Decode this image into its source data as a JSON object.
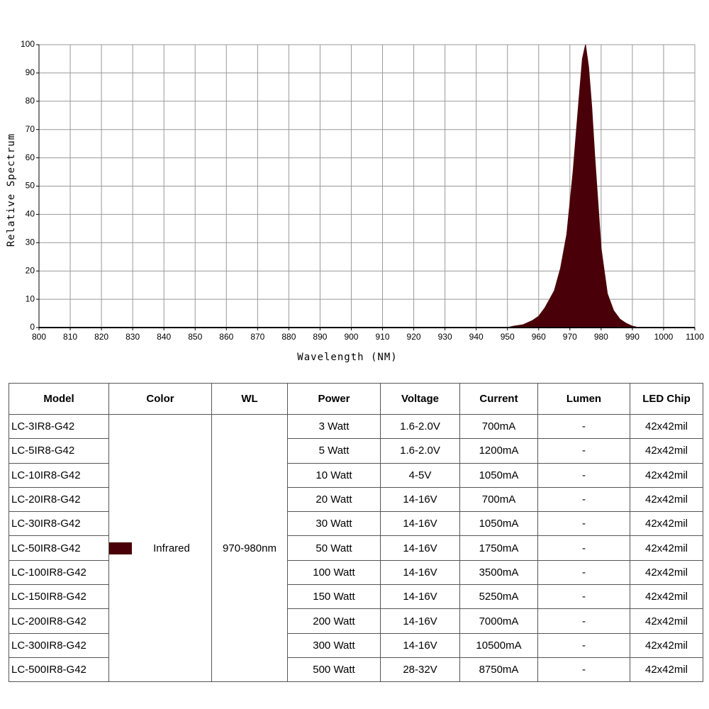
{
  "chart_data": {
    "type": "area",
    "xlabel": "Wavelength (NM)",
    "ylabel": "Relative Spectrum",
    "x": [
      800,
      950,
      952,
      955,
      958,
      960,
      962,
      965,
      967,
      969,
      971,
      973,
      974,
      975,
      976,
      977,
      978,
      980,
      982,
      984,
      986,
      988,
      990,
      992,
      1100
    ],
    "values": [
      0,
      0,
      0.5,
      1,
      2.5,
      4,
      7,
      13,
      21,
      33,
      55,
      82,
      95,
      100,
      92,
      78,
      60,
      28,
      12,
      6,
      3,
      1.5,
      0.5,
      0,
      0
    ],
    "color": "#4a0008",
    "xlim": [
      800,
      1100
    ],
    "xticks": [
      800,
      810,
      820,
      830,
      840,
      850,
      860,
      870,
      880,
      890,
      900,
      910,
      920,
      930,
      940,
      950,
      960,
      970,
      980,
      990,
      1000,
      1100
    ],
    "ylim": [
      0,
      100
    ],
    "yticks": [
      0,
      10,
      20,
      30,
      40,
      50,
      60,
      70,
      80,
      90,
      100
    ],
    "grid": true
  },
  "table": {
    "headers": [
      "Model",
      "Color",
      "WL",
      "Power",
      "Voltage",
      "Current",
      "Lumen",
      "LED Chip"
    ],
    "color_name": "Infrared",
    "swatch_color": "#4a0008",
    "wl": "970-980nm",
    "rows": [
      [
        "LC-3IR8-G42",
        "3 Watt",
        "1.6-2.0V",
        "700mA",
        "-",
        "42x42mil"
      ],
      [
        "LC-5IR8-G42",
        "5 Watt",
        "1.6-2.0V",
        "1200mA",
        "-",
        "42x42mil"
      ],
      [
        "LC-10IR8-G42",
        "10 Watt",
        "4-5V",
        "1050mA",
        "-",
        "42x42mil"
      ],
      [
        "LC-20IR8-G42",
        "20 Watt",
        "14-16V",
        "700mA",
        "-",
        "42x42mil"
      ],
      [
        "LC-30IR8-G42",
        "30 Watt",
        "14-16V",
        "1050mA",
        "-",
        "42x42mil"
      ],
      [
        "LC-50IR8-G42",
        "50 Watt",
        "14-16V",
        "1750mA",
        "-",
        "42x42mil"
      ],
      [
        "LC-100IR8-G42",
        "100 Watt",
        "14-16V",
        "3500mA",
        "-",
        "42x42mil"
      ],
      [
        "LC-150IR8-G42",
        "150 Watt",
        "14-16V",
        "5250mA",
        "-",
        "42x42mil"
      ],
      [
        "LC-200IR8-G42",
        "200 Watt",
        "14-16V",
        "7000mA",
        "-",
        "42x42mil"
      ],
      [
        "LC-300IR8-G42",
        "300 Watt",
        "14-16V",
        "10500mA",
        "-",
        "42x42mil"
      ],
      [
        "LC-500IR8-G42",
        "500 Watt",
        "28-32V",
        "8750mA",
        "-",
        "42x42mil"
      ]
    ]
  }
}
